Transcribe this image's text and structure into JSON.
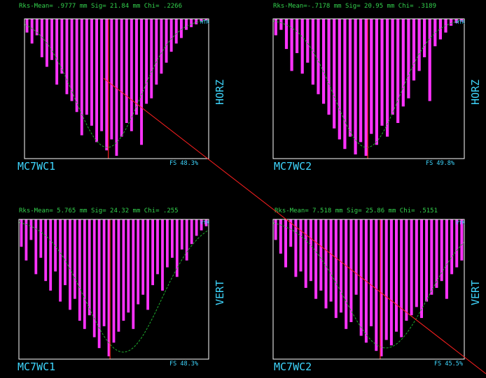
{
  "colors": {
    "background": "#000000",
    "frame": "#ffffff",
    "bar": "#ff33ff",
    "fit": "#1fae2e",
    "header_text": "#33d24d",
    "label_text": "#3fd7ff",
    "mean_line": "#ff2020",
    "diagonal": "#ff2020"
  },
  "panels": [
    {
      "id": "p1",
      "header": "Rks-Mean= .9777 mm Sig= 21.84 mm Chi= .2266",
      "name": "MC7WC1",
      "orientation": "HORZ",
      "fs": "FS  48.3%",
      "badge": "HTR"
    },
    {
      "id": "p2",
      "header": "Rks-Mean=-.7178 mm Sig= 20.95 mm Chi= .3189",
      "name": "MC7WC2",
      "orientation": "HORZ",
      "fs": "FS  49.8%",
      "badge": "HTR"
    },
    {
      "id": "p3",
      "header": "Rks-Mean= 5.765 mm Sig= 24.32 mm Chi= .255",
      "name": "MC7WC1",
      "orientation": "VERT",
      "fs": "FS  48.3%",
      "badge": "VTR"
    },
    {
      "id": "p4",
      "header": "Rks-Mean= 7.518 mm Sig= 25.86 mm Chi= .5151",
      "name": "MC7WC2",
      "orientation": "VERT",
      "fs": "FS  45.5%",
      "badge": "VTR"
    }
  ],
  "chart_data": [
    {
      "type": "bar",
      "panel": "p1",
      "orientation": "inverted (bars hang from top edge)",
      "values": [
        0.1,
        0.18,
        0.12,
        0.28,
        0.35,
        0.3,
        0.48,
        0.4,
        0.55,
        0.6,
        0.68,
        0.85,
        0.7,
        0.78,
        0.9,
        0.82,
        0.96,
        0.88,
        1.0,
        0.86,
        0.76,
        0.82,
        0.7,
        0.92,
        0.62,
        0.58,
        0.48,
        0.4,
        0.32,
        0.24,
        0.18,
        0.14,
        0.08,
        0.06,
        0.04,
        0.02,
        0.01
      ],
      "mean_fraction": 0.455,
      "fit": {
        "shape": "gaussian-dip",
        "center": 0.45,
        "sigma": 0.18,
        "depth": 0.92
      }
    },
    {
      "type": "bar",
      "panel": "p2",
      "orientation": "inverted (bars hang from top edge)",
      "values": [
        0.12,
        0.08,
        0.22,
        0.38,
        0.25,
        0.4,
        0.32,
        0.48,
        0.55,
        0.62,
        0.7,
        0.8,
        0.88,
        0.95,
        0.86,
        0.99,
        0.9,
        1.0,
        0.84,
        0.92,
        0.78,
        0.86,
        0.7,
        0.76,
        0.64,
        0.58,
        0.45,
        0.38,
        0.28,
        0.6,
        0.2,
        0.15,
        0.1,
        0.05,
        0.03,
        0.02
      ],
      "mean_fraction": 0.495,
      "fit": {
        "shape": "gaussian-dip",
        "center": 0.49,
        "sigma": 0.17,
        "depth": 0.92
      }
    },
    {
      "type": "bar",
      "panel": "p3",
      "orientation": "inverted (bars hang from top edge)",
      "values": [
        0.2,
        0.3,
        0.15,
        0.4,
        0.28,
        0.45,
        0.52,
        0.38,
        0.6,
        0.48,
        0.66,
        0.58,
        0.74,
        0.8,
        0.7,
        0.86,
        0.94,
        0.78,
        1.0,
        0.9,
        0.82,
        0.74,
        0.68,
        0.8,
        0.62,
        0.55,
        0.66,
        0.48,
        0.4,
        0.52,
        0.35,
        0.28,
        0.42,
        0.22,
        0.3,
        0.18,
        0.12,
        0.08,
        0.05
      ],
      "mean_fraction": 0.48,
      "fit": {
        "shape": "gaussian-dip",
        "center": 0.55,
        "sigma": 0.2,
        "depth": 0.95
      }
    },
    {
      "type": "bar",
      "panel": "p4",
      "orientation": "inverted (bars hang from top edge)",
      "values": [
        0.15,
        0.25,
        0.35,
        0.2,
        0.42,
        0.38,
        0.5,
        0.45,
        0.58,
        0.52,
        0.65,
        0.6,
        0.72,
        0.68,
        0.8,
        0.75,
        0.55,
        0.85,
        0.9,
        0.78,
        0.96,
        1.0,
        0.88,
        0.92,
        0.82,
        0.86,
        0.74,
        0.7,
        0.64,
        0.72,
        0.6,
        0.55,
        0.5,
        0.45,
        0.58,
        0.4,
        0.35,
        0.3
      ],
      "mean_fraction": 0.56,
      "fit": {
        "shape": "gaussian-dip",
        "center": 0.59,
        "sigma": 0.22,
        "depth": 0.92
      }
    }
  ]
}
